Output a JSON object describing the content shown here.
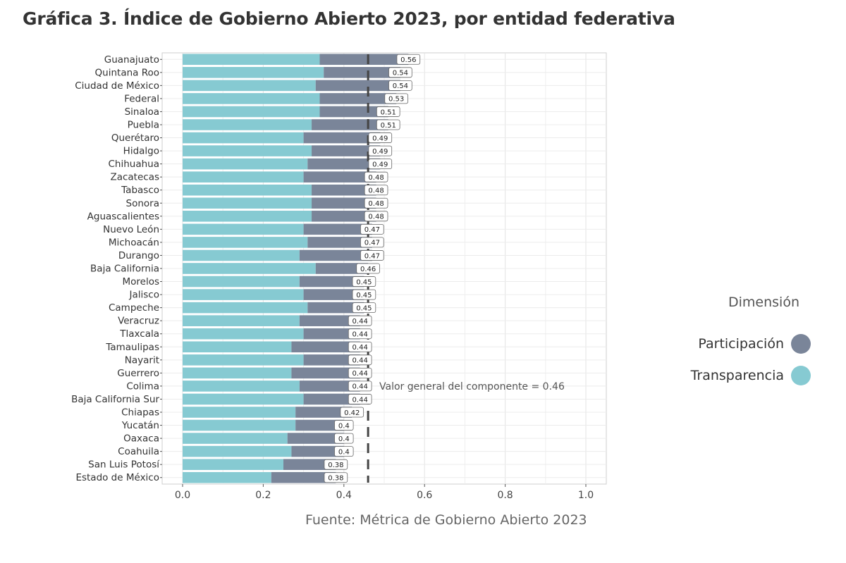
{
  "title": "Gráfica 3. Índice de Gobierno Abierto 2023, por entidad federativa",
  "source": "Fuente: Métrica de Gobierno Abierto 2023",
  "colors": {
    "participacion": "#7a8599",
    "transparencia": "#86cad2",
    "reference": "#444444"
  },
  "legend": {
    "title": "Dimensión",
    "items": [
      {
        "label": "Participación",
        "color": "#7a8599"
      },
      {
        "label": "Transparencia",
        "color": "#86cad2"
      }
    ]
  },
  "chart_data": {
    "type": "bar",
    "orientation": "horizontal",
    "stacked": true,
    "title": "Gráfica 3. Índice de Gobierno Abierto 2023, por entidad federativa",
    "xlim": [
      0,
      1.0
    ],
    "xticks": [
      "0.0",
      "0.2",
      "0.4",
      "0.6",
      "0.8",
      "1.0"
    ],
    "xtick_values": [
      0,
      0.2,
      0.4,
      0.6,
      0.8,
      1.0
    ],
    "categories": [
      "Guanajuato",
      "Quintana Roo",
      "Ciudad de México",
      "Federal",
      "Sinaloa",
      "Puebla",
      "Querétaro",
      "Hidalgo",
      "Chihuahua",
      "Zacatecas",
      "Tabasco",
      "Sonora",
      "Aguascalientes",
      "Nuevo León",
      "Michoacán",
      "Durango",
      "Baja California",
      "Morelos",
      "Jalisco",
      "Campeche",
      "Veracruz",
      "Tlaxcala",
      "Tamaulipas",
      "Nayarit",
      "Guerrero",
      "Colima",
      "Baja California Sur",
      "Chiapas",
      "Yucatán",
      "Oaxaca",
      "Coahuila",
      "San Luis Potosí",
      "Estado de México"
    ],
    "series": [
      {
        "name": "Transparencia",
        "values": [
          0.34,
          0.35,
          0.33,
          0.34,
          0.34,
          0.32,
          0.3,
          0.32,
          0.31,
          0.3,
          0.32,
          0.32,
          0.32,
          0.3,
          0.31,
          0.29,
          0.33,
          0.29,
          0.3,
          0.31,
          0.29,
          0.3,
          0.27,
          0.3,
          0.27,
          0.29,
          0.3,
          0.28,
          0.28,
          0.26,
          0.27,
          0.25,
          0.22
        ]
      },
      {
        "name": "Participación",
        "values": [
          0.22,
          0.19,
          0.21,
          0.19,
          0.17,
          0.19,
          0.19,
          0.17,
          0.18,
          0.18,
          0.16,
          0.16,
          0.16,
          0.17,
          0.16,
          0.18,
          0.13,
          0.16,
          0.15,
          0.14,
          0.15,
          0.14,
          0.17,
          0.14,
          0.17,
          0.15,
          0.14,
          0.14,
          0.12,
          0.14,
          0.13,
          0.13,
          0.16
        ]
      }
    ],
    "totals": [
      0.56,
      0.54,
      0.54,
      0.53,
      0.51,
      0.51,
      0.49,
      0.49,
      0.49,
      0.48,
      0.48,
      0.48,
      0.48,
      0.47,
      0.47,
      0.47,
      0.46,
      0.45,
      0.45,
      0.45,
      0.44,
      0.44,
      0.44,
      0.44,
      0.44,
      0.44,
      0.44,
      0.42,
      0.4,
      0.4,
      0.4,
      0.38,
      0.38
    ],
    "total_labels": [
      "0.56",
      "0.54",
      "0.54",
      "0.53",
      "0.51",
      "0.51",
      "0.49",
      "0.49",
      "0.49",
      "0.48",
      "0.48",
      "0.48",
      "0.48",
      "0.47",
      "0.47",
      "0.47",
      "0.46",
      "0.45",
      "0.45",
      "0.45",
      "0.44",
      "0.44",
      "0.44",
      "0.44",
      "0.44",
      "0.44",
      "0.44",
      "0.42",
      "0.4",
      "0.4",
      "0.4",
      "0.38",
      "0.38"
    ],
    "reference_line": {
      "value": 0.46,
      "label": "Valor general del componente = 0.46"
    },
    "grid": true,
    "legend_position": "right"
  }
}
